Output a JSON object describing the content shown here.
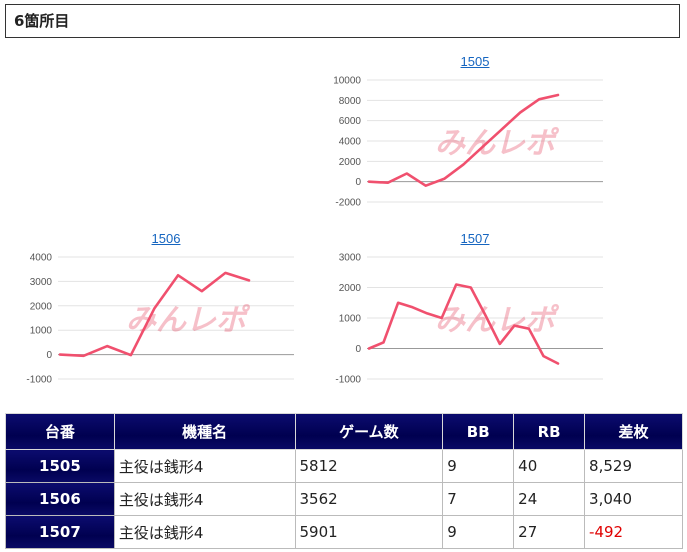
{
  "header": {
    "title": "6箇所目"
  },
  "watermark": {
    "text": "みんレポ"
  },
  "colors": {
    "line": "#f0506e",
    "header_bg": "#000050",
    "link": "#1565c0",
    "negative": "#e00000"
  },
  "charts": {
    "c1505": {
      "title": "1505",
      "ticks": [
        "10000",
        "8000",
        "6000",
        "4000",
        "2000",
        "0",
        "-2000"
      ]
    },
    "c1506": {
      "title": "1506",
      "ticks": [
        "4000",
        "3000",
        "2000",
        "1000",
        "0",
        "-1000"
      ]
    },
    "c1507": {
      "title": "1507",
      "ticks": [
        "3000",
        "2000",
        "1000",
        "0",
        "-1000"
      ]
    }
  },
  "chart_data": [
    {
      "type": "line",
      "title": "1505",
      "ylim": [
        -2000,
        10000
      ],
      "y_ticks": [
        10000,
        8000,
        6000,
        4000,
        2000,
        0,
        -2000
      ],
      "series": [
        {
          "values": [
            0,
            -100,
            800,
            -400,
            300,
            1700,
            3400,
            5100,
            6800,
            8100,
            8529
          ]
        }
      ]
    },
    {
      "type": "line",
      "title": "1506",
      "ylim": [
        -1000,
        4000
      ],
      "y_ticks": [
        4000,
        3000,
        2000,
        1000,
        0,
        -1000
      ],
      "series": [
        {
          "values": [
            0,
            -50,
            350,
            -20,
            1900,
            3250,
            2600,
            3350,
            3040
          ]
        }
      ]
    },
    {
      "type": "line",
      "title": "1507",
      "ylim": [
        -1000,
        3000
      ],
      "y_ticks": [
        3000,
        2000,
        1000,
        0,
        -1000
      ],
      "series": [
        {
          "values": [
            0,
            200,
            1500,
            1350,
            1150,
            1000,
            2100,
            2000,
            1100,
            150,
            750,
            650,
            -250,
            -492
          ]
        }
      ]
    }
  ],
  "table": {
    "headers": [
      "台番",
      "機種名",
      "ゲーム数",
      "BB",
      "RB",
      "差枚"
    ],
    "rows": [
      [
        "1505",
        "主役は銭形4",
        "5812",
        "9",
        "40",
        "8,529"
      ],
      [
        "1506",
        "主役は銭形4",
        "3562",
        "7",
        "24",
        "3,040"
      ],
      [
        "1507",
        "主役は銭形4",
        "5901",
        "9",
        "27",
        "-492"
      ]
    ]
  }
}
